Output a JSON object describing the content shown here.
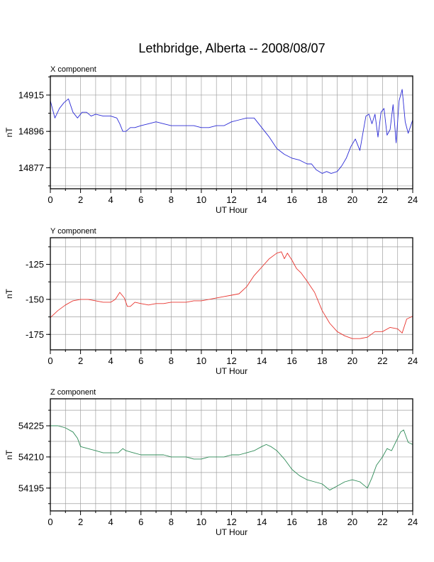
{
  "title": "Lethbridge, Alberta -- 2008/08/07",
  "chart_data": [
    {
      "type": "line",
      "panel_title": "X component",
      "xlabel": "UT Hour",
      "ylabel": "nT",
      "xlim": [
        0,
        24
      ],
      "ylim": [
        14866,
        14925
      ],
      "xticks": [
        0,
        2,
        4,
        6,
        8,
        10,
        12,
        14,
        16,
        18,
        20,
        22,
        24
      ],
      "yticks": [
        14877,
        14896,
        14915
      ],
      "grid": true,
      "color": "#2b2bd6",
      "series": [
        {
          "x": [
            0,
            0.3,
            0.6,
            0.9,
            1.2,
            1.5,
            1.8,
            2.1,
            2.4,
            2.7,
            3.0,
            3.5,
            4.0,
            4.4,
            4.6,
            4.8,
            5.0,
            5.3,
            5.6,
            6.0,
            6.5,
            7.0,
            7.5,
            8.0,
            8.5,
            9.0,
            9.5,
            10.0,
            10.5,
            11.0,
            11.5,
            12.0,
            12.5,
            13.0,
            13.5,
            14.0,
            14.5,
            15.0,
            15.5,
            16.0,
            16.5,
            17.0,
            17.3,
            17.6,
            18.0,
            18.3,
            18.6,
            19.0,
            19.3,
            19.6,
            19.9,
            20.2,
            20.5,
            20.7,
            20.9,
            21.1,
            21.3,
            21.5,
            21.7,
            21.9,
            22.1,
            22.3,
            22.5,
            22.7,
            22.9,
            23.1,
            23.3,
            23.5,
            23.7,
            24.0
          ],
          "y": [
            14912,
            14903,
            14908,
            14911,
            14913,
            14906,
            14903,
            14906,
            14906,
            14904,
            14905,
            14904,
            14904,
            14903,
            14900,
            14896,
            14896,
            14898,
            14898,
            14899,
            14900,
            14901,
            14900,
            14899,
            14899,
            14899,
            14899,
            14898,
            14898,
            14899,
            14899,
            14901,
            14902,
            14903,
            14903,
            14898,
            14893,
            14887,
            14884,
            14882,
            14881,
            14879,
            14879,
            14876,
            14874,
            14875,
            14874,
            14875,
            14878,
            14882,
            14888,
            14892,
            14886,
            14895,
            14904,
            14905,
            14900,
            14905,
            14893,
            14906,
            14908,
            14894,
            14897,
            14910,
            14890,
            14912,
            14918,
            14901,
            14895,
            14902
          ]
        }
      ]
    },
    {
      "type": "line",
      "panel_title": "Y component",
      "xlabel": "UT Hour",
      "ylabel": "nT",
      "xlim": [
        0,
        24
      ],
      "ylim": [
        -186,
        -106
      ],
      "xticks": [
        0,
        2,
        4,
        6,
        8,
        10,
        12,
        14,
        16,
        18,
        20,
        22,
        24
      ],
      "yticks": [
        -175,
        -150,
        -125
      ],
      "grid": true,
      "color": "#e8342e",
      "series": [
        {
          "x": [
            0,
            0.5,
            1.0,
            1.5,
            2.0,
            2.5,
            3.0,
            3.5,
            4.0,
            4.3,
            4.6,
            4.9,
            5.1,
            5.3,
            5.6,
            6.0,
            6.5,
            7.0,
            7.5,
            8.0,
            8.5,
            9.0,
            9.5,
            10.0,
            10.5,
            11.0,
            11.5,
            12.0,
            12.5,
            13.0,
            13.5,
            14.0,
            14.5,
            15.0,
            15.3,
            15.5,
            15.7,
            16.0,
            16.3,
            16.6,
            17.0,
            17.5,
            18.0,
            18.5,
            19.0,
            19.5,
            20.0,
            20.5,
            21.0,
            21.5,
            22.0,
            22.5,
            23.0,
            23.3,
            23.6,
            24.0
          ],
          "y": [
            -163,
            -158,
            -154,
            -151,
            -150,
            -150,
            -151,
            -152,
            -152,
            -150,
            -145,
            -149,
            -155,
            -155,
            -152,
            -153,
            -154,
            -153,
            -153,
            -152,
            -152,
            -152,
            -151,
            -151,
            -150,
            -149,
            -148,
            -147,
            -146,
            -141,
            -133,
            -127,
            -121,
            -117,
            -116,
            -121,
            -117,
            -122,
            -128,
            -131,
            -137,
            -145,
            -158,
            -167,
            -173,
            -176,
            -178,
            -178,
            -177,
            -173,
            -173,
            -170,
            -171,
            -174,
            -164,
            -162
          ]
        }
      ]
    },
    {
      "type": "line",
      "panel_title": "Z component",
      "xlabel": "UT Hour",
      "ylabel": "nT",
      "xlim": [
        0,
        24
      ],
      "ylim": [
        54184,
        54238
      ],
      "xticks": [
        0,
        2,
        4,
        6,
        8,
        10,
        12,
        14,
        16,
        18,
        20,
        22,
        24
      ],
      "yticks": [
        54195,
        54210,
        54225
      ],
      "grid": true,
      "color": "#2e8b57",
      "series": [
        {
          "x": [
            0,
            0.5,
            1.0,
            1.5,
            1.8,
            2.0,
            2.5,
            3.0,
            3.5,
            4.0,
            4.5,
            4.8,
            5.0,
            5.5,
            6.0,
            6.5,
            7.0,
            7.5,
            8.0,
            8.5,
            9.0,
            9.5,
            10.0,
            10.5,
            11.0,
            11.5,
            12.0,
            12.5,
            13.0,
            13.5,
            14.0,
            14.3,
            14.6,
            15.0,
            15.5,
            16.0,
            16.5,
            17.0,
            17.5,
            18.0,
            18.5,
            19.0,
            19.5,
            20.0,
            20.5,
            21.0,
            21.3,
            21.6,
            22.0,
            22.3,
            22.6,
            23.0,
            23.2,
            23.4,
            23.7,
            24.0
          ],
          "y": [
            54225,
            54225,
            54224,
            54222,
            54219,
            54215,
            54214,
            54213,
            54212,
            54212,
            54212,
            54214,
            54213,
            54212,
            54211,
            54211,
            54211,
            54211,
            54210,
            54210,
            54210,
            54209,
            54209,
            54210,
            54210,
            54210,
            54211,
            54211,
            54212,
            54213,
            54215,
            54216,
            54215,
            54213,
            54209,
            54204,
            54201,
            54199,
            54198,
            54197,
            54194,
            54196,
            54198,
            54199,
            54198,
            54195,
            54200,
            54206,
            54210,
            54214,
            54213,
            54219,
            54222,
            54223,
            54217,
            54216
          ]
        }
      ]
    }
  ]
}
